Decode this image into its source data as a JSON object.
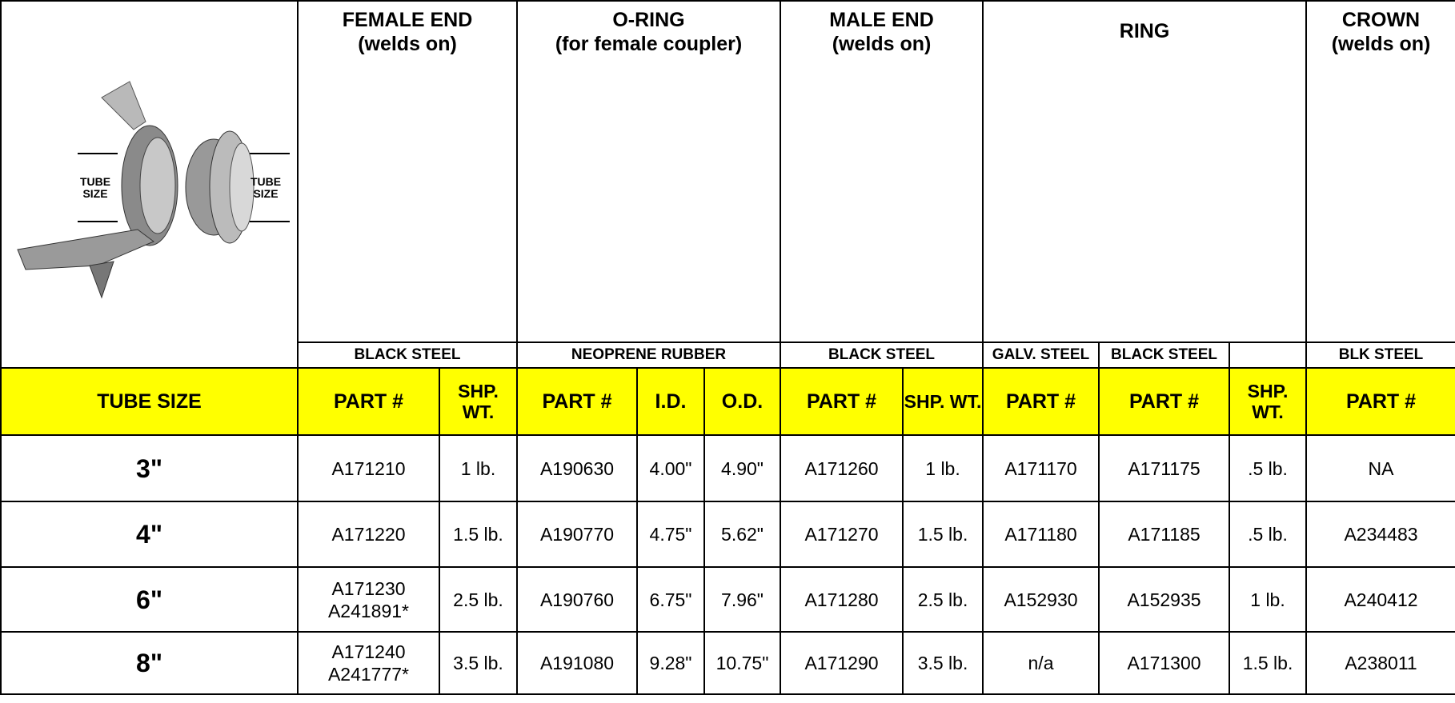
{
  "header": {
    "image_labels": [
      "TUBE SIZE",
      "TUBE SIZE"
    ],
    "groups": [
      {
        "title": "FEMALE END",
        "subtitle": "(welds on)"
      },
      {
        "title": "O-RING",
        "subtitle": "(for female coupler)"
      },
      {
        "title": "MALE END",
        "subtitle": "(welds on)"
      },
      {
        "title": "RING"
      },
      {
        "title": "CROWN",
        "subtitle": "(welds on)"
      }
    ],
    "materials": [
      "BLACK STEEL",
      "NEOPRENE RUBBER",
      "BLACK STEEL",
      "GALV. STEEL",
      "BLACK STEEL",
      "BLK STEEL"
    ]
  },
  "table": {
    "columns": [
      "TUBE SIZE",
      "PART #",
      "SHP. WT.",
      "PART #",
      "I.D.",
      "O.D.",
      "PART #",
      "SHP. WT.",
      "PART #",
      "PART #",
      "SHP. WT.",
      "PART #"
    ],
    "rows": [
      [
        "3\"",
        "A171210",
        "1 lb.",
        "A190630",
        "4.00\"",
        "4.90\"",
        "A171260",
        "1 lb.",
        "A171170",
        "A171175",
        ".5 lb.",
        "NA"
      ],
      [
        "4\"",
        "A171220",
        "1.5 lb.",
        "A190770",
        "4.75\"",
        "5.62\"",
        "A171270",
        "1.5 lb.",
        "A171180",
        "A171185",
        ".5 lb.",
        "A234483"
      ],
      [
        "6\"",
        "A171230\nA241891*",
        "2.5 lb.",
        "A190760",
        "6.75\"",
        "7.96\"",
        "A171280",
        "2.5 lb.",
        "A152930",
        "A152935",
        "1 lb.",
        "A240412"
      ],
      [
        "8\"",
        "A171240\nA241777*",
        "3.5 lb.",
        "A191080",
        "9.28\"",
        "10.75\"",
        "A171290",
        "3.5 lb.",
        "n/a",
        "A171300",
        "1.5 lb.",
        "A238011"
      ]
    ]
  }
}
